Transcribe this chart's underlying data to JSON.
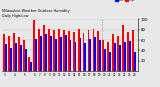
{
  "title": "Milwaukee Weather Outdoor Humidity",
  "subtitle": "Daily High/Low",
  "background_color": "#e8e8e8",
  "plot_bg_color": "#e8e8e8",
  "high_color": "#ff0000",
  "low_color": "#0000ff",
  "legend_high": "High",
  "legend_low": "Low",
  "ylim": [
    0,
    100
  ],
  "yticks": [
    20,
    40,
    60,
    80,
    100
  ],
  "categories": [
    "3",
    "",
    "4",
    "",
    "5",
    "",
    "6",
    "7",
    "8",
    "9",
    "10",
    "11",
    "12",
    "13",
    "14",
    "15",
    "16",
    "17",
    "18",
    "19",
    "20",
    "21",
    "22",
    "23",
    "24",
    "25",
    "26"
  ],
  "highs": [
    72,
    68,
    73,
    65,
    60,
    28,
    98,
    82,
    88,
    82,
    80,
    82,
    80,
    78,
    76,
    82,
    74,
    80,
    82,
    78,
    60,
    56,
    72,
    68,
    88,
    76,
    80
  ],
  "lows": [
    52,
    44,
    54,
    50,
    42,
    18,
    62,
    68,
    72,
    68,
    62,
    66,
    70,
    60,
    56,
    64,
    54,
    62,
    66,
    60,
    42,
    38,
    55,
    50,
    56,
    58,
    38
  ],
  "dotted_line_x": 19.5,
  "grid_color": "#bbbbbb",
  "bar_width": 0.38
}
